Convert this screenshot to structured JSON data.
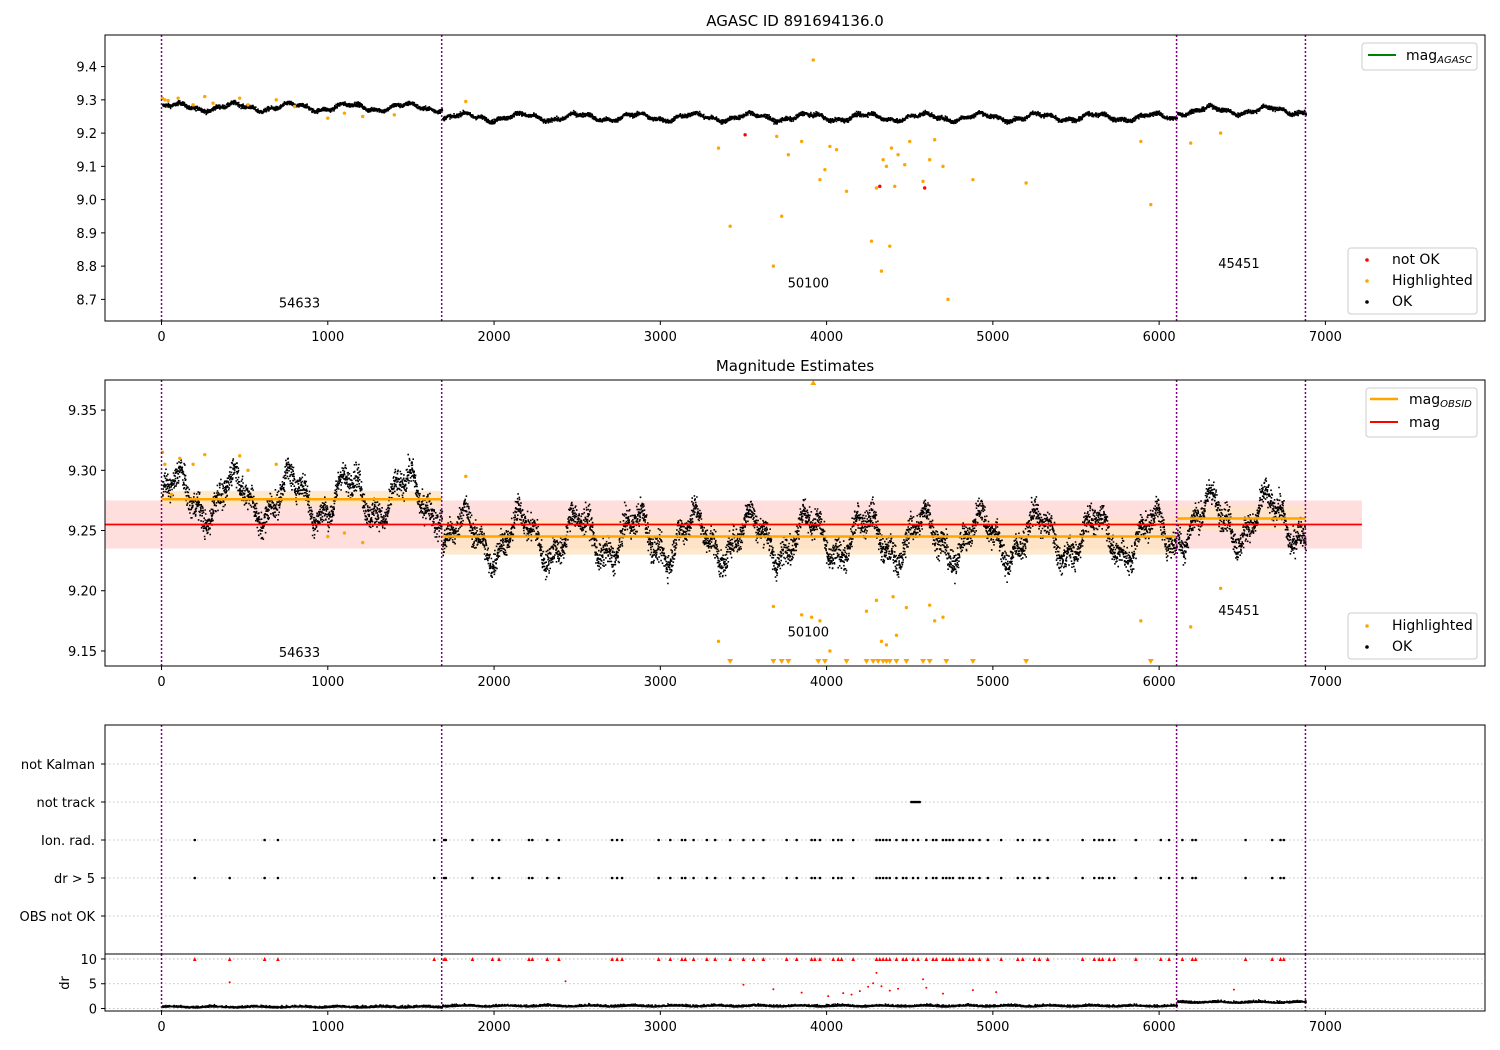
{
  "colors": {
    "ok": "#000000",
    "highlighted": "#ffa500",
    "not_ok": "#ff0000",
    "mag_agasc": "#008000",
    "mag_obsid": "#ffa500",
    "mag": "#ff0000",
    "band_red": "#ffd6d6",
    "band_orange": "#ffe3c2",
    "obsid_line": "#800080",
    "grid": "#b0b0b0"
  },
  "chart_data": [
    {
      "type": "scatter",
      "title": "AGASC ID 891694136.0",
      "xlim": [
        -340,
        7960
      ],
      "ylim": [
        8.635,
        9.495
      ],
      "xticks": [
        0,
        1000,
        2000,
        3000,
        4000,
        5000,
        6000,
        7000
      ],
      "yticks": [
        8.7,
        8.8,
        8.9,
        9.0,
        9.1,
        9.2,
        9.3,
        9.4
      ],
      "ytick_labels": [
        "8.7",
        "8.8",
        "8.9",
        "9.0",
        "9.1",
        "9.2",
        "9.3",
        "9.4"
      ],
      "obsid_boundaries": [
        0,
        1685,
        6105,
        6880
      ],
      "obsid_labels": [
        {
          "text": "54633",
          "x": 830,
          "y": 8.675
        },
        {
          "text": "50100",
          "x": 3890,
          "y": 8.735
        },
        {
          "text": "45451",
          "x": 6480,
          "y": 8.795
        }
      ],
      "ok_levels": [
        {
          "from": 0,
          "to": 1685,
          "level": 9.28
        },
        {
          "from": 1685,
          "to": 6105,
          "level": 9.25
        },
        {
          "from": 6105,
          "to": 6880,
          "level": 9.27
        }
      ],
      "highlighted_points": [
        [
          5,
          9.305
        ],
        [
          20,
          9.3
        ],
        [
          40,
          9.298
        ],
        [
          100,
          9.305
        ],
        [
          190,
          9.285
        ],
        [
          260,
          9.31
        ],
        [
          310,
          9.29
        ],
        [
          470,
          9.305
        ],
        [
          520,
          9.285
        ],
        [
          690,
          9.3
        ],
        [
          800,
          9.28
        ],
        [
          1000,
          9.245
        ],
        [
          1100,
          9.26
        ],
        [
          1210,
          9.25
        ],
        [
          1400,
          9.255
        ],
        [
          1830,
          9.295
        ],
        [
          3350,
          9.155
        ],
        [
          3420,
          8.92
        ],
        [
          3680,
          8.8
        ],
        [
          3700,
          9.19
        ],
        [
          3730,
          8.95
        ],
        [
          3770,
          9.135
        ],
        [
          3850,
          9.175
        ],
        [
          3920,
          9.42
        ],
        [
          3960,
          9.06
        ],
        [
          3990,
          9.09
        ],
        [
          4020,
          9.16
        ],
        [
          4060,
          9.15
        ],
        [
          4120,
          9.025
        ],
        [
          4270,
          8.875
        ],
        [
          4300,
          9.035
        ],
        [
          4330,
          8.785
        ],
        [
          4340,
          9.12
        ],
        [
          4360,
          9.1
        ],
        [
          4380,
          8.86
        ],
        [
          4390,
          9.155
        ],
        [
          4410,
          9.04
        ],
        [
          4430,
          9.135
        ],
        [
          4470,
          9.105
        ],
        [
          4500,
          9.175
        ],
        [
          4580,
          9.055
        ],
        [
          4620,
          9.12
        ],
        [
          4650,
          9.18
        ],
        [
          4700,
          9.1
        ],
        [
          4730,
          8.7
        ],
        [
          4880,
          9.06
        ],
        [
          5200,
          9.05
        ],
        [
          5890,
          9.175
        ],
        [
          5950,
          8.985
        ],
        [
          6190,
          9.17
        ],
        [
          6370,
          9.2
        ]
      ],
      "not_ok_points": [
        [
          3510,
          9.195
        ],
        [
          4320,
          9.04
        ],
        [
          4590,
          9.035
        ]
      ],
      "legends": [
        {
          "position": "upper right",
          "entries": [
            "mag_AGASC"
          ]
        },
        {
          "position": "lower right",
          "entries": [
            "not OK",
            "Highlighted",
            "OK"
          ]
        }
      ]
    },
    {
      "type": "scatter",
      "title": "Magnitude Estimates",
      "xlim": [
        -340,
        7960
      ],
      "ylim": [
        9.1375,
        9.375
      ],
      "xticks": [
        0,
        1000,
        2000,
        3000,
        4000,
        5000,
        6000,
        7000
      ],
      "yticks": [
        9.15,
        9.2,
        9.25,
        9.3,
        9.35
      ],
      "ytick_labels": [
        "9.15",
        "9.20",
        "9.25",
        "9.30",
        "9.35"
      ],
      "obsid_boundaries": [
        0,
        1685,
        6105,
        6880
      ],
      "obsid_labels": [
        {
          "text": "54633",
          "x": 830,
          "y": 9.145
        },
        {
          "text": "50100",
          "x": 3890,
          "y": 9.162
        },
        {
          "text": "45451",
          "x": 6480,
          "y": 9.18
        }
      ],
      "mag_obsid": [
        {
          "from": 0,
          "to": 1685,
          "value": 9.276,
          "band": [
            9.27,
            9.283
          ]
        },
        {
          "from": 1685,
          "to": 6105,
          "value": 9.245,
          "band": [
            9.23,
            9.26
          ]
        },
        {
          "from": 6105,
          "to": 6880,
          "value": 9.26,
          "band": [
            9.25,
            9.27
          ]
        }
      ],
      "mag": {
        "value": 9.255,
        "band": [
          9.235,
          9.275
        ],
        "from": -340,
        "to": 7220
      },
      "highlighted_points": [
        [
          5,
          9.315
        ],
        [
          20,
          9.305
        ],
        [
          60,
          9.28
        ],
        [
          110,
          9.31
        ],
        [
          190,
          9.305
        ],
        [
          260,
          9.313
        ],
        [
          470,
          9.312
        ],
        [
          520,
          9.3
        ],
        [
          690,
          9.305
        ],
        [
          1000,
          9.245
        ],
        [
          1100,
          9.248
        ],
        [
          1210,
          9.24
        ],
        [
          1830,
          9.295
        ],
        [
          3350,
          9.158
        ],
        [
          3680,
          9.187
        ],
        [
          3850,
          9.18
        ],
        [
          3910,
          9.178
        ],
        [
          3960,
          9.175
        ],
        [
          4020,
          9.15
        ],
        [
          4240,
          9.183
        ],
        [
          4300,
          9.192
        ],
        [
          4330,
          9.158
        ],
        [
          4360,
          9.155
        ],
        [
          4400,
          9.195
        ],
        [
          4420,
          9.163
        ],
        [
          4480,
          9.186
        ],
        [
          4620,
          9.188
        ],
        [
          4650,
          9.175
        ],
        [
          4700,
          9.178
        ],
        [
          5890,
          9.175
        ],
        [
          6190,
          9.17
        ],
        [
          6370,
          9.202
        ]
      ],
      "clipped_low_x": [
        3420,
        3680,
        3730,
        3770,
        3950,
        3990,
        4120,
        4240,
        4280,
        4310,
        4340,
        4360,
        4380,
        4420,
        4480,
        4580,
        4620,
        4720,
        4880,
        5200,
        5950
      ],
      "clipped_high_x": [
        3920
      ],
      "legends": [
        {
          "position": "upper right",
          "entries": [
            "mag_OBSID",
            "mag"
          ]
        },
        {
          "position": "lower right",
          "entries": [
            "Highlighted",
            "OK"
          ]
        }
      ]
    },
    {
      "type": "scatter",
      "title": "",
      "xlim": [
        -340,
        7960
      ],
      "categories": [
        "OBS not OK",
        "dr > 5",
        "Ion. rad.",
        "not track",
        "not Kalman"
      ],
      "obsid_boundaries": [
        0,
        1685,
        6105,
        6880
      ],
      "ion_rad_x": [
        200,
        620,
        700,
        1640,
        1700,
        1710,
        1870,
        1990,
        2030,
        2210,
        2230,
        2320,
        2390,
        2710,
        2740,
        2770,
        2990,
        3060,
        3130,
        3150,
        3200,
        3280,
        3330,
        3420,
        3500,
        3560,
        3620,
        3760,
        3820,
        3910,
        3930,
        3960,
        4040,
        4070,
        4090,
        4160,
        4300,
        4320,
        4340,
        4360,
        4380,
        4420,
        4460,
        4480,
        4520,
        4550,
        4600,
        4640,
        4660,
        4700,
        4720,
        4740,
        4760,
        4800,
        4820,
        4860,
        4880,
        4920,
        4970,
        5050,
        5150,
        5180,
        5250,
        5280,
        5330,
        5540,
        5610,
        5640,
        5660,
        5700,
        5730,
        5860,
        6010,
        6060,
        6140,
        6200,
        6220,
        6520,
        6680,
        6730,
        6750
      ],
      "dr5_x": [
        200,
        410,
        620,
        700,
        1640,
        1700,
        1710,
        1870,
        1990,
        2030,
        2210,
        2230,
        2320,
        2390,
        2710,
        2740,
        2770,
        2990,
        3060,
        3130,
        3150,
        3200,
        3280,
        3330,
        3420,
        3500,
        3560,
        3620,
        3760,
        3820,
        3910,
        3930,
        3960,
        4040,
        4070,
        4090,
        4160,
        4300,
        4320,
        4340,
        4360,
        4380,
        4420,
        4460,
        4480,
        4520,
        4550,
        4600,
        4640,
        4660,
        4700,
        4720,
        4740,
        4760,
        4800,
        4820,
        4860,
        4880,
        4920,
        4970,
        5050,
        5150,
        5180,
        5250,
        5280,
        5330,
        5540,
        5610,
        5640,
        5660,
        5700,
        5730,
        5860,
        6010,
        6060,
        6140,
        6200,
        6220,
        6520,
        6680,
        6730,
        6750
      ],
      "not_track_x": [
        4510,
        4520,
        4530,
        4540,
        4550,
        4560
      ]
    },
    {
      "type": "scatter",
      "title": "",
      "xlim": [
        -340,
        7960
      ],
      "ylim": [
        -0.5,
        11
      ],
      "xticks": [
        0,
        1000,
        2000,
        3000,
        4000,
        5000,
        6000,
        7000
      ],
      "yticks": [
        0,
        5,
        10
      ],
      "ylabel": "dr",
      "obsid_boundaries": [
        0,
        1685,
        6105,
        6880
      ],
      "dr_levels": [
        {
          "from": 0,
          "to": 1685,
          "level": 0.35
        },
        {
          "from": 1685,
          "to": 6105,
          "level": 0.55
        },
        {
          "from": 6105,
          "to": 6880,
          "level": 1.3
        }
      ],
      "dr_outliers": [
        [
          410,
          5.3
        ],
        [
          2430,
          5.5
        ],
        [
          3500,
          4.8
        ],
        [
          3680,
          3.9
        ],
        [
          3850,
          3.2
        ],
        [
          4010,
          2.5
        ],
        [
          4100,
          3.1
        ],
        [
          4150,
          2.8
        ],
        [
          4200,
          3.5
        ],
        [
          4250,
          4.4
        ],
        [
          4280,
          5.1
        ],
        [
          4300,
          7.2
        ],
        [
          4330,
          4.5
        ],
        [
          4380,
          3.6
        ],
        [
          4430,
          4.0
        ],
        [
          4580,
          5.9
        ],
        [
          4600,
          4.2
        ],
        [
          4700,
          3.0
        ],
        [
          4880,
          3.7
        ],
        [
          5020,
          3.3
        ],
        [
          6450,
          3.8
        ]
      ]
    }
  ]
}
